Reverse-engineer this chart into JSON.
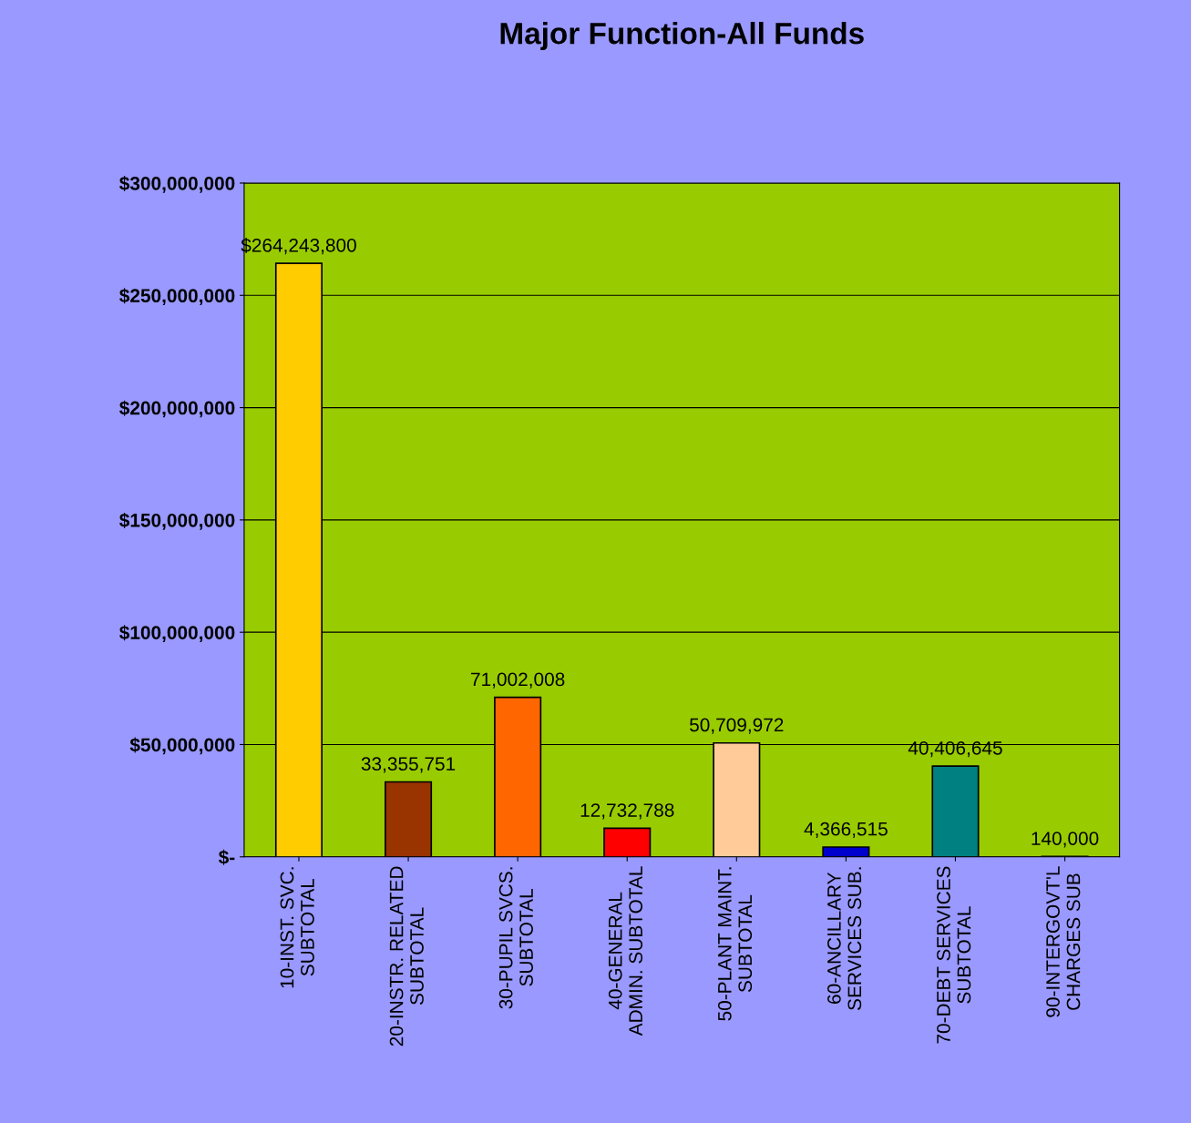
{
  "chart_data": {
    "type": "bar",
    "title": "Major Function-All Funds",
    "categories": [
      "10-INST. SVC.\nSUBTOTAL",
      "20-INSTR. RELATED\nSUBTOTAL",
      "30-PUPIL SVCS.\nSUBTOTAL",
      "40-GENERAL\nADMIN. SUBTOTAL",
      "50-PLANT MAINT.\nSUBTOTAL",
      "60-ANCILLARY\nSERVICES SUB.",
      "70-DEBT SERVICES\nSUBTOTAL",
      "90-INTERGOVT'L\nCHARGES SUB"
    ],
    "values": [
      264243800,
      33355751,
      71002008,
      12732788,
      50709972,
      4366515,
      40406645,
      140000
    ],
    "value_labels": [
      "$264,243,800",
      "33,355,751",
      "71,002,008",
      "12,732,788",
      "50,709,972",
      "4,366,515",
      "40,406,645",
      "140,000"
    ],
    "colors": [
      "#ffcc00",
      "#993300",
      "#ff6600",
      "#ff0000",
      "#ffcc99",
      "#0000cc",
      "#008080",
      "#33cccc"
    ],
    "ylim": [
      0,
      300000000
    ],
    "yticks": [
      {
        "value": 0,
        "label": "$-"
      },
      {
        "value": 50000000,
        "label": "$50,000,000"
      },
      {
        "value": 100000000,
        "label": "$100,000,000"
      },
      {
        "value": 150000000,
        "label": "$150,000,000"
      },
      {
        "value": 200000000,
        "label": "$200,000,000"
      },
      {
        "value": 250000000,
        "label": "$250,000,000"
      },
      {
        "value": 300000000,
        "label": "$300,000,000"
      }
    ],
    "grid": "y"
  }
}
